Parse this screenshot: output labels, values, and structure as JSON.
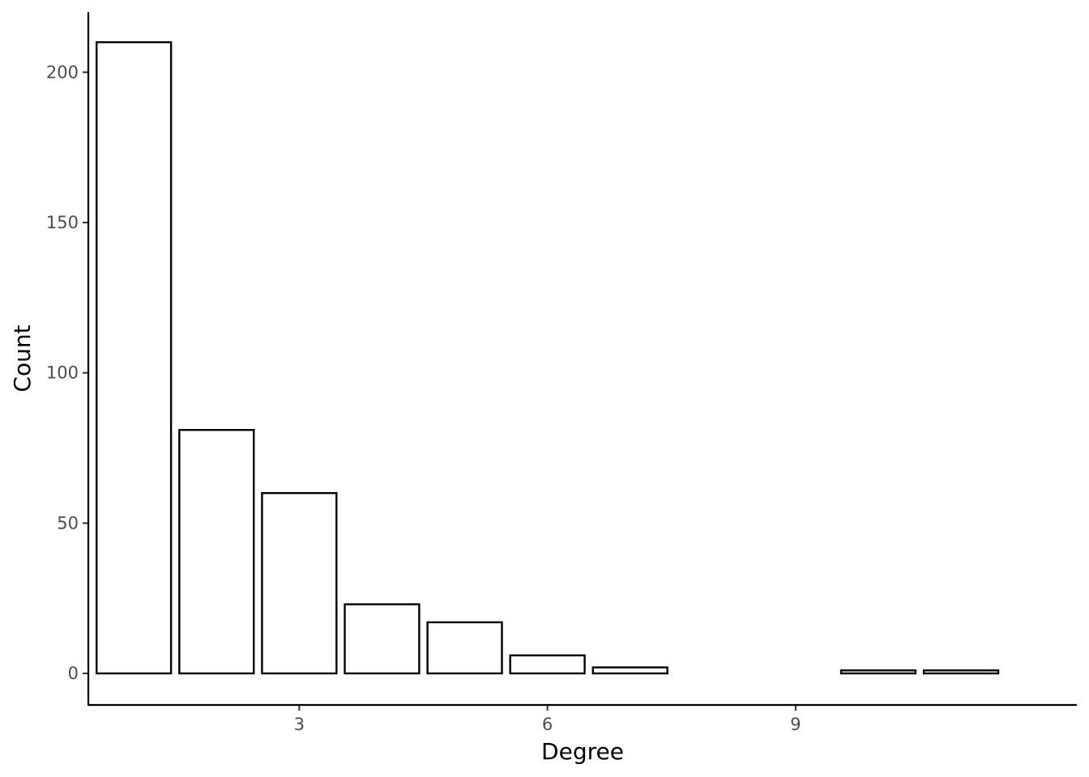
{
  "chart_data": {
    "type": "bar",
    "title": "",
    "xlabel": "Degree",
    "ylabel": "Count",
    "x": [
      1,
      2,
      3,
      4,
      5,
      6,
      7,
      8,
      9,
      10,
      11
    ],
    "values": [
      210,
      81,
      60,
      23,
      17,
      6,
      2,
      0,
      0,
      1,
      1
    ],
    "xlim": [
      0.45,
      12.4
    ],
    "ylim": [
      -10.5,
      220
    ],
    "x_ticks": [
      3,
      6,
      9
    ],
    "y_ticks": [
      0,
      50,
      100,
      150,
      200
    ],
    "grid": false,
    "legend": "none",
    "bar_fill": "#ffffff",
    "bar_outline": "#000000"
  }
}
